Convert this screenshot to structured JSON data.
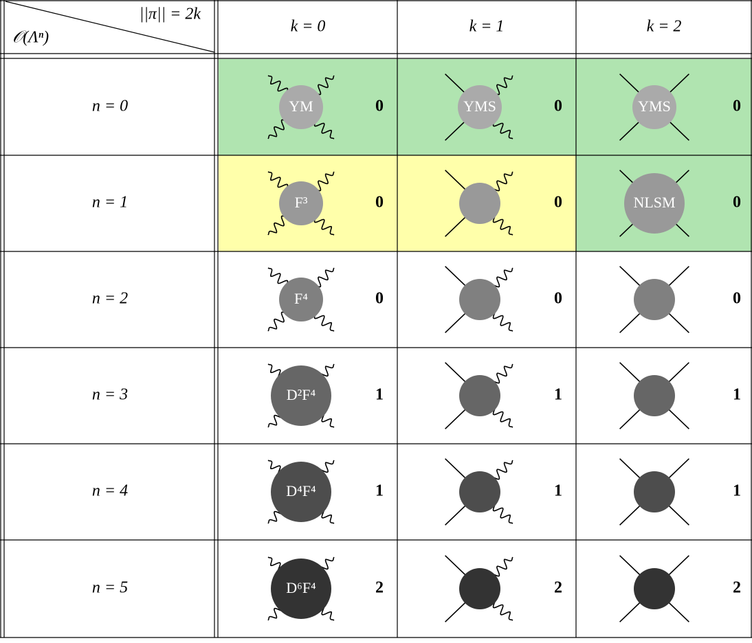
{
  "header": {
    "corner_top": "||π|| = 2k",
    "corner_bottom": "𝒪(Λⁿ)",
    "columns": [
      "k = 0",
      "k = 1",
      "k = 2"
    ]
  },
  "rows": [
    {
      "label": "n = 0",
      "cells": [
        {
          "blob": "YM",
          "order": 0,
          "color": "#b0e4b0"
        },
        {
          "blob": "YMS",
          "order": 0,
          "color": "#b0e4b0"
        },
        {
          "blob": "YMS",
          "order": 0,
          "color": "#b0e4b0"
        }
      ]
    },
    {
      "label": "n = 1",
      "cells": [
        {
          "blob": "F³",
          "order": 0,
          "color": "#ffffaa"
        },
        {
          "order": 0,
          "color": "#ffffaa"
        },
        {
          "blob": "NLSM",
          "order": 0,
          "color": "#b0e4b0"
        }
      ]
    },
    {
      "label": "n = 2",
      "cells": [
        {
          "blob": "F⁴",
          "order": 0
        },
        {
          "order": 0
        },
        {
          "order": 0
        }
      ]
    },
    {
      "label": "n = 3",
      "cells": [
        {
          "blob": "D²F⁴",
          "order": 1
        },
        {
          "order": 1
        },
        {
          "order": 1
        }
      ]
    },
    {
      "label": "n = 4",
      "cells": [
        {
          "blob": "D⁴F⁴",
          "order": 1
        },
        {
          "order": 1
        },
        {
          "order": 1
        }
      ]
    },
    {
      "label": "n = 5",
      "cells": [
        {
          "blob": "D⁶F⁴",
          "order": 2
        },
        {
          "order": 2
        },
        {
          "order": 2
        }
      ]
    }
  ]
}
